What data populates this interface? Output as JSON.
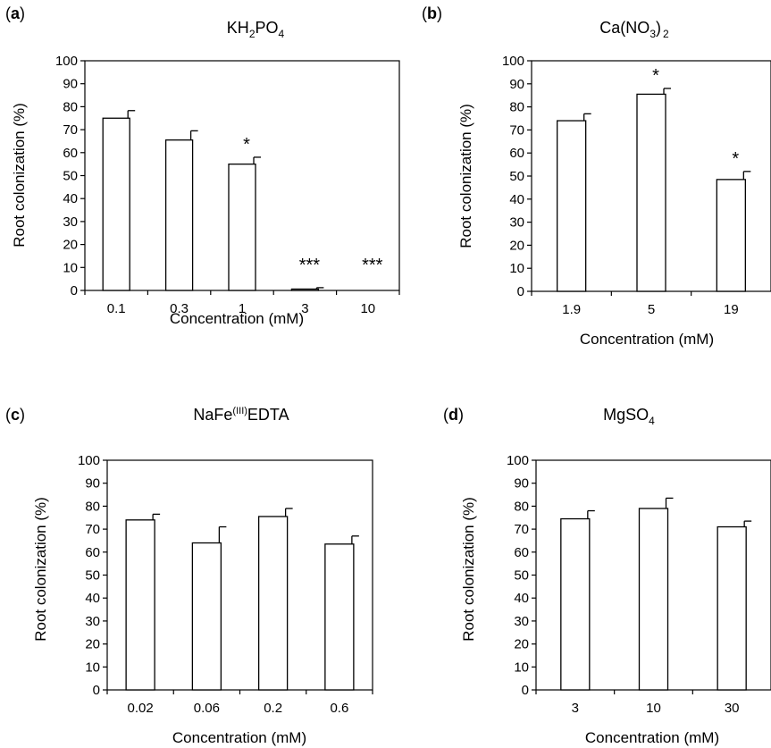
{
  "chart_data": [
    {
      "type": "bar",
      "panel": "(a)",
      "title": {
        "main": "KH",
        "sub1": "2",
        "mid": "PO",
        "sub2": "4"
      },
      "xlabel": "Concentration (mM)",
      "ylabel": "Root colonization (%)",
      "ylim": [
        0,
        100
      ],
      "yticks": [
        "0",
        "10",
        "20",
        "30",
        "40",
        "50",
        "60",
        "70",
        "80",
        "90",
        "100"
      ],
      "categories": [
        "0.1",
        "0.3",
        "1",
        "3",
        "10"
      ],
      "values": [
        75,
        65.5,
        55,
        0.6,
        0
      ],
      "errors": [
        3.3,
        4,
        3,
        0.6,
        0
      ],
      "significance": [
        "",
        "",
        "*",
        "***",
        "***"
      ]
    },
    {
      "type": "bar",
      "panel": "(b)",
      "title": {
        "main": "Ca(NO",
        "sub1": "3",
        "mid": ")",
        "sub2": "2"
      },
      "xlabel": "Concentration (mM)",
      "ylabel": "Root colonization (%)",
      "ylim": [
        0,
        100
      ],
      "yticks": [
        "0",
        "10",
        "20",
        "30",
        "40",
        "50",
        "60",
        "70",
        "80",
        "90",
        "100"
      ],
      "categories": [
        "1.9",
        "5",
        "19"
      ],
      "values": [
        74,
        85.5,
        48.5
      ],
      "errors": [
        3,
        2.5,
        3.5
      ],
      "significance": [
        "",
        "*",
        "*"
      ]
    },
    {
      "type": "bar",
      "panel": "(c)",
      "title": {
        "main": "NaFe",
        "sup": "(III)",
        "rest": "EDTA"
      },
      "xlabel": "Concentration (mM)",
      "ylabel": "Root colonization (%)",
      "ylim": [
        0,
        100
      ],
      "yticks": [
        "0",
        "10",
        "20",
        "30",
        "40",
        "50",
        "60",
        "70",
        "80",
        "90",
        "100"
      ],
      "categories": [
        "0.02",
        "0.06",
        "0.2",
        "0.6"
      ],
      "values": [
        74,
        64,
        75.5,
        63.5
      ],
      "errors": [
        2.5,
        7,
        3.5,
        3.5
      ],
      "significance": [
        "",
        "",
        "",
        ""
      ]
    },
    {
      "type": "bar",
      "panel": "(d)",
      "title": {
        "main": "MgSO",
        "sub1": "4"
      },
      "xlabel": "Concentration (mM)",
      "ylabel": "Root colonization (%)",
      "ylim": [
        0,
        100
      ],
      "yticks": [
        "0",
        "10",
        "20",
        "30",
        "40",
        "50",
        "60",
        "70",
        "80",
        "90",
        "100"
      ],
      "categories": [
        "3",
        "10",
        "30"
      ],
      "values": [
        74.5,
        79,
        71
      ],
      "errors": [
        3.5,
        4.5,
        2.5
      ],
      "significance": [
        "",
        "",
        ""
      ]
    }
  ]
}
